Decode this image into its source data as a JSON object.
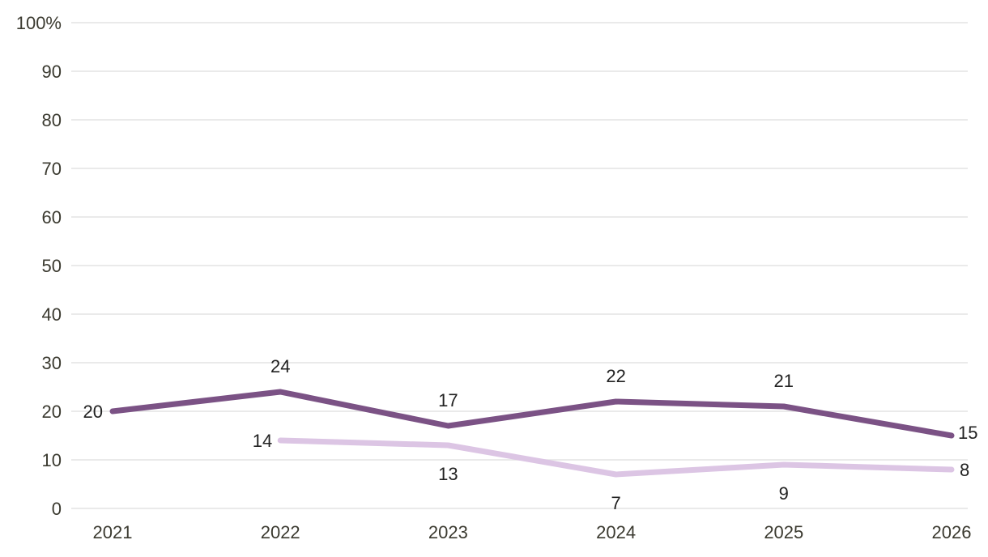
{
  "chart_data": {
    "type": "line",
    "title": "",
    "xlabel": "",
    "ylabel": "",
    "x": [
      "2021",
      "2022",
      "2023",
      "2024",
      "2025",
      "2026"
    ],
    "ylim": [
      0,
      100
    ],
    "y_ticks": [
      "0",
      "10",
      "20",
      "30",
      "40",
      "50",
      "60",
      "70",
      "80",
      "90",
      "100%"
    ],
    "grid": true,
    "series": [
      {
        "color": "#7b5285",
        "values": [
          20,
          24,
          17,
          22,
          21,
          15
        ],
        "labels": [
          "20",
          "24",
          "17",
          "22",
          "21",
          "15"
        ]
      },
      {
        "color": "#dcc5e4",
        "values": [
          null,
          14,
          13,
          7,
          9,
          8
        ],
        "labels": [
          "",
          "14",
          "13",
          "7",
          "9",
          "8"
        ]
      }
    ]
  }
}
